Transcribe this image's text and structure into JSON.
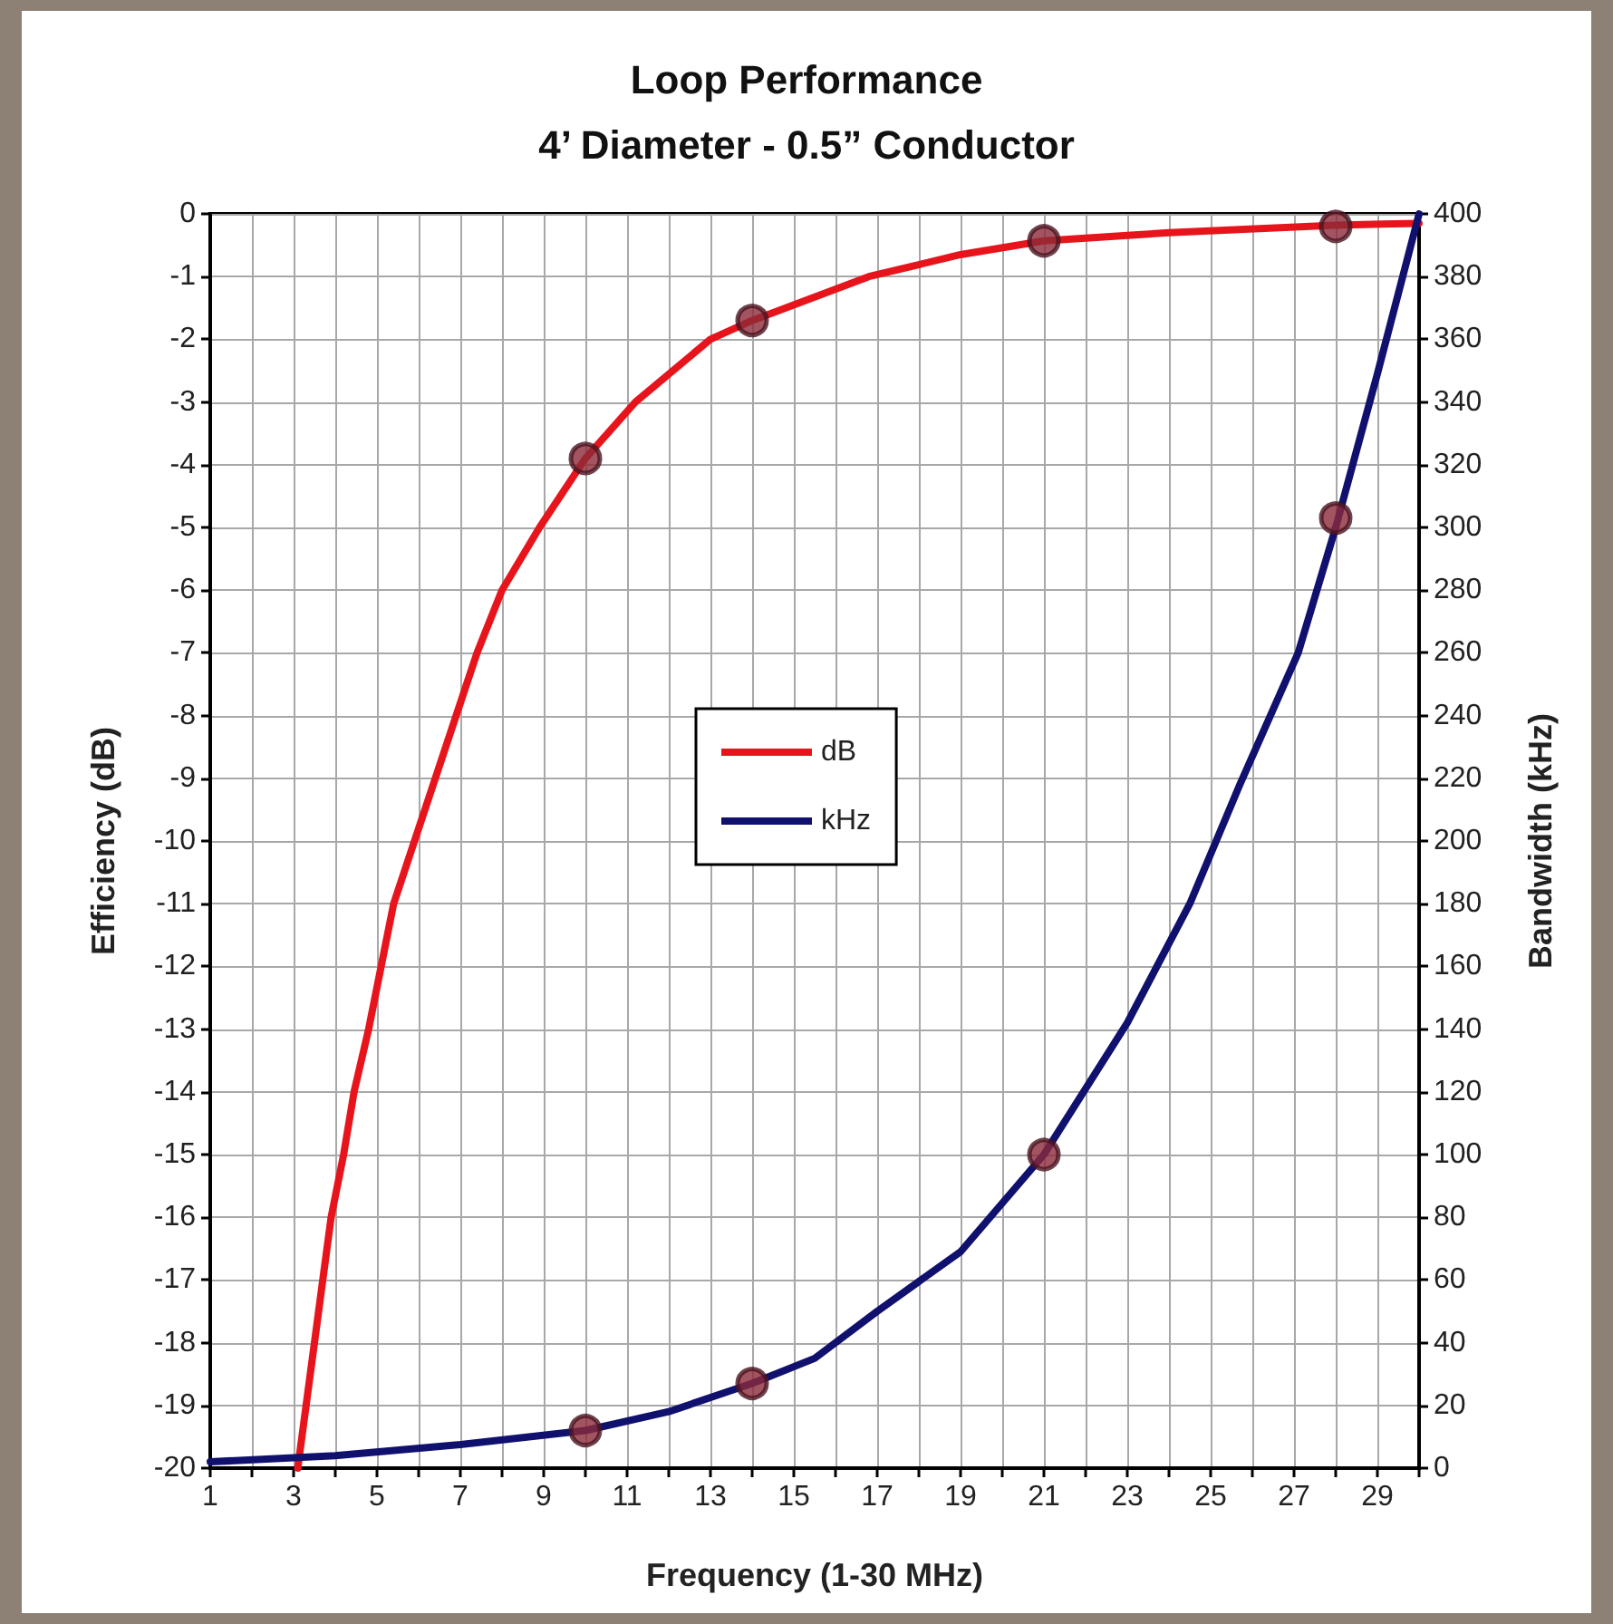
{
  "chart_data": {
    "type": "line",
    "title": "Loop Performance",
    "subtitle": "4’ Diameter - 0.5” Conductor",
    "xlabel": "Frequency (1-30 MHz)",
    "ylabel": "Efficiency (dB)",
    "y2label": "Bandwidth (kHz)",
    "xlim": [
      1,
      30
    ],
    "xticks": [
      1,
      {
        "value": 2,
        "label": null
      },
      3,
      {
        "value": 4,
        "label": null
      },
      5,
      {
        "value": 6,
        "label": null
      },
      7,
      {
        "value": 8,
        "label": null
      },
      9,
      {
        "value": 10,
        "label": null
      },
      11,
      {
        "value": 12,
        "label": null
      },
      13,
      {
        "value": 14,
        "label": null
      },
      15,
      {
        "value": 16,
        "label": null
      },
      17,
      {
        "value": 18,
        "label": null
      },
      19,
      {
        "value": 20,
        "label": null
      },
      21,
      {
        "value": 22,
        "label": null
      },
      23,
      {
        "value": 24,
        "label": null
      },
      25,
      {
        "value": 26,
        "label": null
      },
      27,
      {
        "value": 28,
        "label": null
      },
      29,
      {
        "value": 30,
        "label": null
      }
    ],
    "ylim": [
      -20,
      0
    ],
    "yticks": [
      -20,
      -19,
      -18,
      -17,
      -16,
      -15,
      -14,
      -13,
      -12,
      -11,
      -10,
      -9,
      -8,
      -7,
      -6,
      -5,
      -4,
      -3,
      -2,
      -1,
      0
    ],
    "y2lim": [
      0,
      400
    ],
    "y2ticks": [
      0,
      20,
      40,
      60,
      80,
      100,
      120,
      140,
      160,
      180,
      200,
      220,
      240,
      260,
      280,
      300,
      320,
      340,
      360,
      380,
      400
    ],
    "grid": true,
    "legend": "center",
    "line_style": "solid",
    "series": [
      {
        "name": "dB",
        "color": "#e8141c",
        "marker": "none",
        "x": [
          3.1,
          3.3,
          3.5,
          3.7,
          3.9,
          4.2,
          4.45,
          4.8,
          5.1,
          5.4,
          5.9,
          6.4,
          6.9,
          7.4,
          8,
          8.9,
          10,
          11.2,
          13,
          14,
          16.8,
          19,
          21,
          24,
          28,
          30
        ],
        "values": [
          -20,
          -19,
          -18,
          -17,
          -16,
          -15,
          -14,
          -13,
          -12,
          -11,
          -10,
          -9,
          -8,
          -7,
          -6,
          -5,
          -3.9,
          -3,
          -2,
          -1.7,
          -1,
          -0.65,
          -0.43,
          -0.3,
          -0.18,
          -0.15
        ]
      },
      {
        "name": "kHz",
        "color": "#10106e",
        "marker": "none",
        "axis": "y2",
        "x": [
          1,
          4,
          7,
          10,
          12,
          14,
          15.5,
          17,
          19,
          21,
          23,
          24.5,
          25.7,
          27.1,
          28,
          29,
          30
        ],
        "values": [
          2,
          4,
          7.5,
          12,
          18,
          27,
          35,
          50,
          69,
          100,
          142,
          180,
          218,
          260,
          300,
          349,
          400
        ]
      },
      {
        "type": "scatter",
        "color": "#8b2b3a",
        "marker": "circle",
        "x": [
          10,
          14,
          21,
          28
        ],
        "values": [
          -3.9,
          -1.7,
          -0.43,
          -0.2
        ]
      },
      {
        "type": "scatter",
        "color": "#8b2b3a",
        "marker": "circle",
        "axis": "y2",
        "x": [
          10,
          14,
          21,
          28
        ],
        "values": [
          12,
          27,
          100,
          303
        ]
      }
    ]
  }
}
